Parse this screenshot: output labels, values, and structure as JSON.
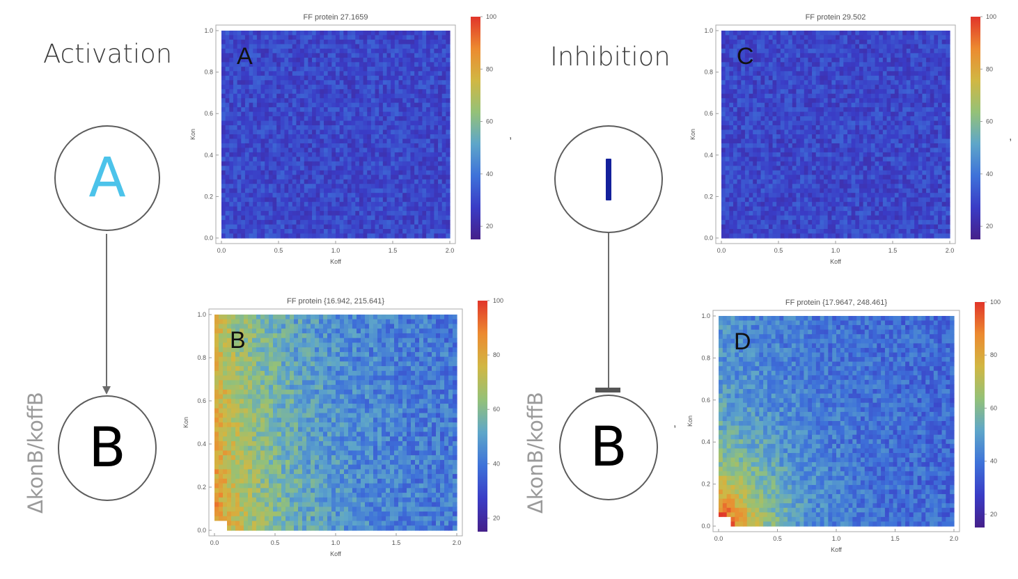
{
  "activation": {
    "title": "Activation",
    "node_top": "A",
    "node_bottom": "B",
    "side_label": "ΔkonB/koffB",
    "node_top_color": "#4cc3ea",
    "node_bottom_color": "#000000"
  },
  "inhibition": {
    "title": "Inhibition",
    "node_top": "I",
    "node_bottom": "B",
    "side_label": "ΔkonB/koffB",
    "node_top_color": "#13209b",
    "node_bottom_color": "#000000"
  },
  "separators": [
    ",",
    ",",
    ","
  ],
  "colormap": [
    "#45208a",
    "#3a3cc6",
    "#3e72d9",
    "#5ea6c9",
    "#94c178",
    "#d1b743",
    "#ec8a30",
    "#e1352a"
  ],
  "chart_data": [
    {
      "id": "A",
      "type": "heatmap",
      "panel_label": "A",
      "title": "FF protein 27.1659",
      "xlabel": "Koff",
      "ylabel": "Kon",
      "xlim": [
        0,
        2
      ],
      "ylim": [
        0,
        1
      ],
      "xticks": [
        "0.0",
        "0.5",
        "1.0",
        "1.5",
        "2.0"
      ],
      "yticks": [
        "0.0",
        "0.2",
        "0.4",
        "0.6",
        "0.8",
        "1.0"
      ],
      "colorbar": {
        "range": [
          15,
          100
        ],
        "ticks": [
          "20",
          "40",
          "60",
          "80",
          "100"
        ]
      },
      "pattern": "uniform",
      "mean_value": 27.1659
    },
    {
      "id": "B",
      "type": "heatmap",
      "panel_label": "B",
      "title": "FF protein {16.942, 215.641}",
      "xlabel": "Koff",
      "ylabel": "Kon",
      "xlim": [
        0,
        2
      ],
      "ylim": [
        0,
        1
      ],
      "xticks": [
        "0.0",
        "0.5",
        "1.0",
        "1.5",
        "2.0"
      ],
      "yticks": [
        "0.0",
        "0.2",
        "0.4",
        "0.6",
        "0.8",
        "1.0"
      ],
      "colorbar": {
        "range": [
          15,
          100
        ],
        "ticks": [
          "20",
          "40",
          "60",
          "80",
          "100"
        ]
      },
      "pattern": "high_at_low_koff",
      "min_value": 16.942,
      "max_value": 215.641
    },
    {
      "id": "C",
      "type": "heatmap",
      "panel_label": "C",
      "title": "FF protein 29.502",
      "xlabel": "Koff",
      "ylabel": "Kon",
      "xlim": [
        0,
        2
      ],
      "ylim": [
        0,
        1
      ],
      "xticks": [
        "0.0",
        "0.5",
        "1.0",
        "1.5",
        "2.0"
      ],
      "yticks": [
        "0.0",
        "0.2",
        "0.4",
        "0.6",
        "0.8",
        "1.0"
      ],
      "colorbar": {
        "range": [
          15,
          100
        ],
        "ticks": [
          "20",
          "40",
          "60",
          "80",
          "100"
        ]
      },
      "pattern": "uniform",
      "mean_value": 29.502
    },
    {
      "id": "D",
      "type": "heatmap",
      "panel_label": "D",
      "title": "FF protein {17.9647, 248.461}",
      "xlabel": "Koff",
      "ylabel": "Kon",
      "xlim": [
        0,
        2
      ],
      "ylim": [
        0,
        1
      ],
      "xticks": [
        "0.0",
        "0.5",
        "1.0",
        "1.5",
        "2.0"
      ],
      "yticks": [
        "0.0",
        "0.2",
        "0.4",
        "0.6",
        "0.8",
        "1.0"
      ],
      "colorbar": {
        "range": [
          15,
          100
        ],
        "ticks": [
          "20",
          "40",
          "60",
          "80",
          "100"
        ]
      },
      "pattern": "high_at_low_koff_low_kon",
      "min_value": 17.9647,
      "max_value": 248.461
    }
  ]
}
